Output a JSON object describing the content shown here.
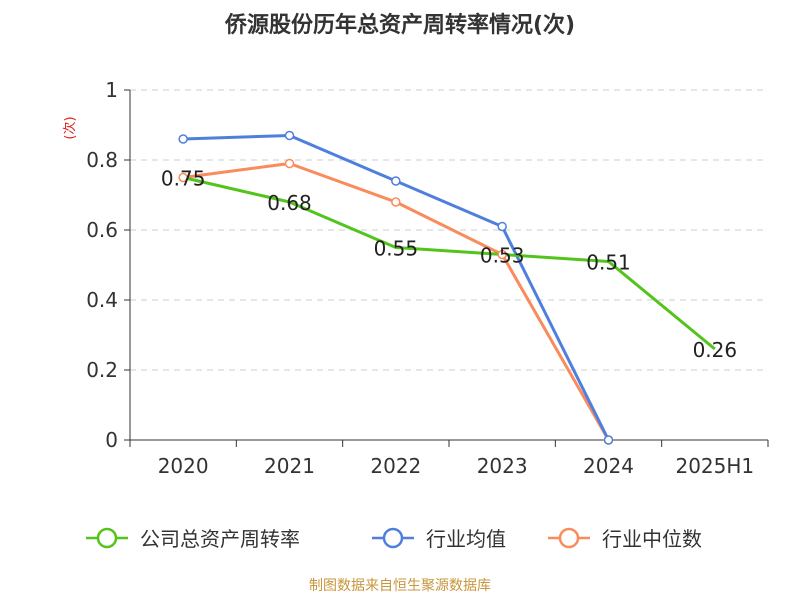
{
  "chart_data": {
    "type": "line",
    "title": "侨源股份历年总资产周转率情况(次)",
    "ylabel": "(次)",
    "xlabel": "",
    "categories": [
      "2020",
      "2021",
      "2022",
      "2023",
      "2024",
      "2025H1"
    ],
    "ylim": [
      0,
      1
    ],
    "yticks": [
      0,
      0.2,
      0.4,
      0.6,
      0.8,
      1
    ],
    "ytick_labels": [
      "0",
      "0.2",
      "0.4",
      "0.6",
      "0.8",
      "1"
    ],
    "grid": true,
    "legend_position": "bottom",
    "series": [
      {
        "name": "公司总资产周转率",
        "color": "#52c41a",
        "values": [
          0.75,
          0.68,
          0.55,
          0.53,
          0.51,
          0.26
        ],
        "labels": [
          "0.75",
          "0.68",
          "0.55",
          "0.53",
          "0.51",
          "0.26"
        ]
      },
      {
        "name": "行业均值",
        "color": "#4f7fdd",
        "values": [
          0.86,
          0.87,
          0.74,
          0.61,
          0.0,
          null
        ]
      },
      {
        "name": "行业中位数",
        "color": "#f98b5c",
        "values": [
          0.75,
          0.79,
          0.68,
          0.53,
          0.0,
          null
        ]
      }
    ]
  },
  "colors": {
    "title": "#333333",
    "axis": "#333333",
    "grid": "#cccccc",
    "ylabel": "#e02020",
    "source": "#c8963c"
  },
  "source_text": "制图数据来自恒生聚源数据库"
}
